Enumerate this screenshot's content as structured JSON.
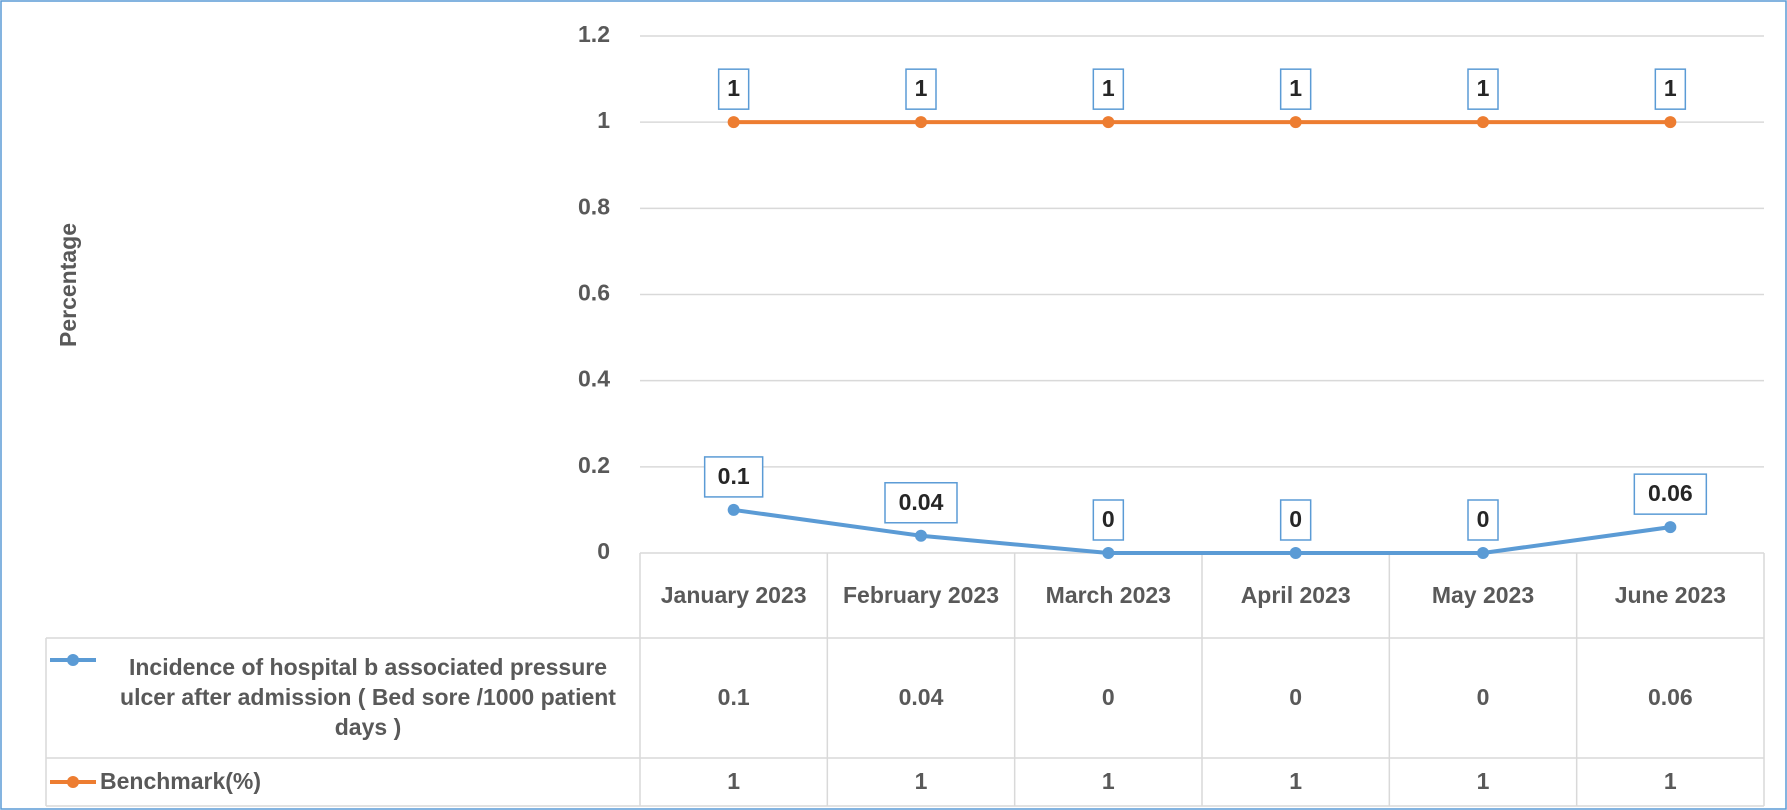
{
  "chart_data": {
    "type": "line",
    "y_label": "Percentage",
    "categories": [
      "January 2023",
      "February 2023",
      "March 2023",
      "April 2023",
      "May 2023",
      "June 2023"
    ],
    "series": [
      {
        "name": "Incidence of  hospital b associated pressure ulcer  after admission  ( Bed sore /1000 patient days )",
        "color": "#5b9bd5",
        "values": [
          0.1,
          0.04,
          0,
          0,
          0,
          0.06
        ]
      },
      {
        "name": "Benchmark(%)",
        "color": "#ed7d31",
        "values": [
          1,
          1,
          1,
          1,
          1,
          1
        ]
      }
    ],
    "ylim": [
      0,
      1.2
    ],
    "yticks": [
      0,
      0.2,
      0.4,
      0.6,
      0.8,
      1,
      1.2
    ],
    "grid": true,
    "data_table": true
  }
}
